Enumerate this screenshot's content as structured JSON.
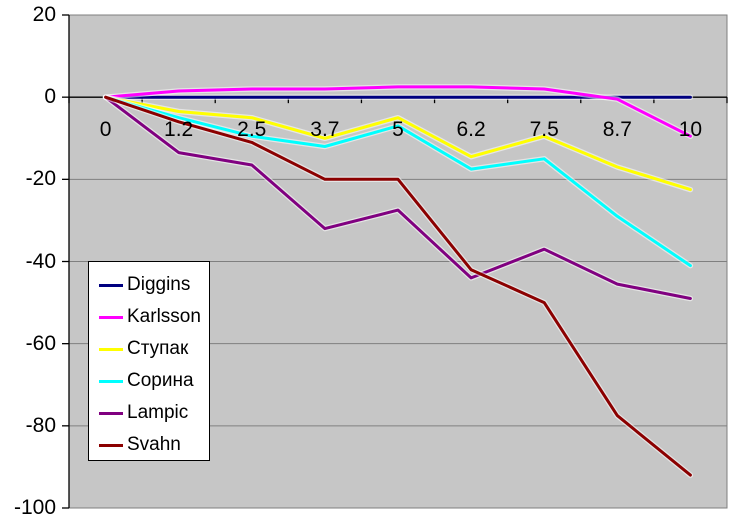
{
  "chart_data": {
    "type": "line",
    "categories": [
      "0",
      "1.2",
      "2.5",
      "3.7",
      "5",
      "6.2",
      "7.5",
      "8.7",
      "10"
    ],
    "y_ticks": [
      "20",
      "0",
      "-20",
      "-40",
      "-60",
      "-80",
      "-100"
    ],
    "ylim": [
      -100,
      20
    ],
    "grid": true,
    "legend_position": "middle-left",
    "series": [
      {
        "name": "Diggins",
        "color": "#000080",
        "values": [
          0,
          0,
          0,
          0,
          0,
          0,
          0,
          0,
          0
        ]
      },
      {
        "name": "Karlsson",
        "color": "#ff00ff",
        "values": [
          0,
          1.5,
          2,
          2,
          2.5,
          2.5,
          2,
          -0.5,
          -9.5
        ]
      },
      {
        "name": "Ступак",
        "color": "#ffff00",
        "values": [
          0,
          -3.5,
          -5,
          -10,
          -5,
          -14.5,
          -9.5,
          -17,
          -22.5
        ]
      },
      {
        "name": "Сорина",
        "color": "#00ffff",
        "values": [
          0,
          -5,
          -9.5,
          -12,
          -7,
          -17.5,
          -15,
          -29,
          -41
        ]
      },
      {
        "name": "Lampic",
        "color": "#800080",
        "values": [
          0,
          -13.5,
          -16.5,
          -32,
          -27.5,
          -44,
          -37,
          -45.5,
          -49
        ]
      },
      {
        "name": "Svahn",
        "color": "#8b0000",
        "values": [
          0,
          -6,
          -11,
          -20,
          -20,
          -42,
          -50,
          -77.5,
          -92
        ]
      }
    ],
    "colors": {
      "page_bg": "#ffffff",
      "plot_bg": "#c6c6c6",
      "grid": "#7f7f7f",
      "axis": "#000000",
      "legend_bg": "#ffffff",
      "legend_border": "#000000",
      "text": "#000000"
    }
  }
}
